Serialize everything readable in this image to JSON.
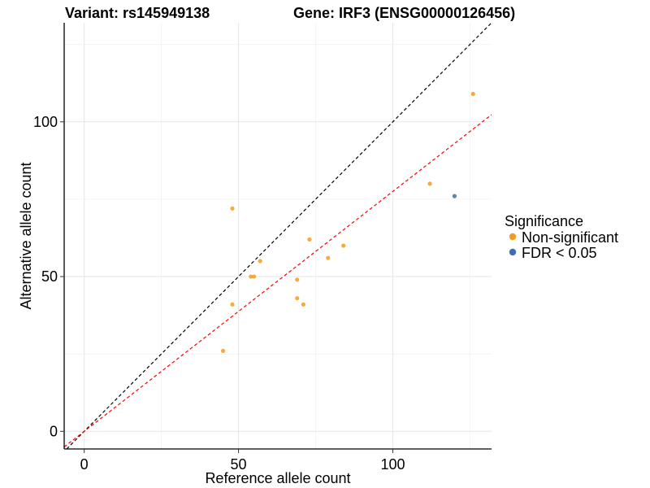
{
  "chart_data": {
    "type": "scatter",
    "title_left": "Variant: rs145949138",
    "title_right": "Gene: IRF3 (ENSG00000126456)",
    "xlabel": "Reference allele count",
    "ylabel": "Alternative allele count",
    "xlim": [
      -6.5,
      132
    ],
    "ylim": [
      -5.7,
      132
    ],
    "x_ticks": [
      0,
      50,
      100
    ],
    "y_ticks": [
      0,
      50,
      100
    ],
    "grid": true,
    "legend": {
      "title": "Significance",
      "placement": "right",
      "entries": [
        {
          "label": "Non-significant",
          "color": "#F39C1F"
        },
        {
          "label": "FDR < 0.05",
          "color": "#3B6FAE"
        }
      ]
    },
    "reference_lines": [
      {
        "name": "identity",
        "slope": 1.0,
        "intercept": 0,
        "color": "#000000",
        "style": "dashed"
      },
      {
        "name": "fit",
        "slope": 0.775,
        "intercept": 0,
        "color": "#FF0000",
        "style": "dashed"
      }
    ],
    "series": [
      {
        "name": "Non-significant",
        "color": "#F39C1F",
        "points": [
          [
            45,
            26
          ],
          [
            48,
            72
          ],
          [
            48,
            41
          ],
          [
            54,
            50
          ],
          [
            55,
            50
          ],
          [
            57,
            55
          ],
          [
            69,
            49
          ],
          [
            69,
            43
          ],
          [
            71,
            41
          ],
          [
            73,
            62
          ],
          [
            79,
            56
          ],
          [
            84,
            60
          ],
          [
            112,
            80
          ],
          [
            126,
            109
          ]
        ]
      },
      {
        "name": "FDR < 0.05",
        "color": "#3B6FAE",
        "points": [
          [
            120,
            76
          ]
        ]
      }
    ]
  }
}
